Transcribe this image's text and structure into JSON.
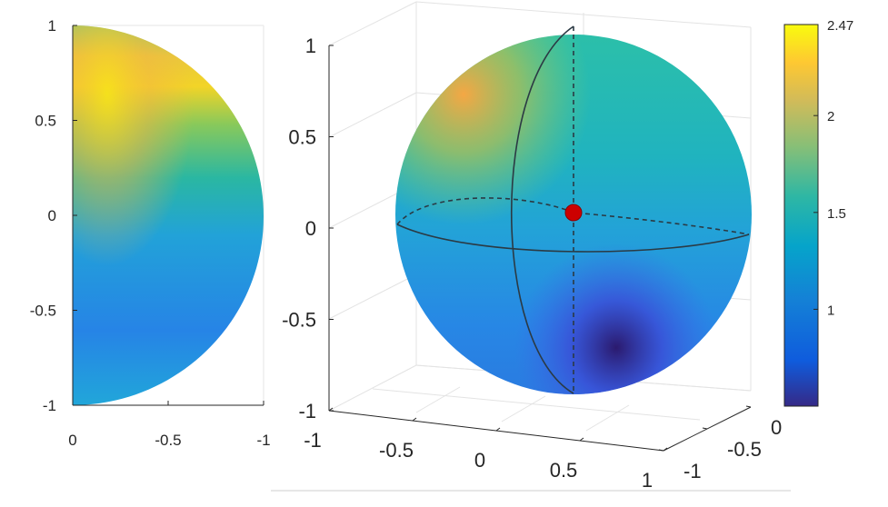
{
  "chart_data": [
    {
      "type": "heatmap",
      "view": "2D half-disk projection",
      "x_ticks": [
        "0",
        "-0.5",
        "-1"
      ],
      "y_ticks": [
        "1",
        "0.5",
        "0",
        "-0.5",
        "-1"
      ],
      "xlim": [
        0,
        -1
      ],
      "ylim": [
        -1,
        1
      ],
      "grid": true
    },
    {
      "type": "heatmap",
      "view": "3D sphere surface",
      "z_ticks": [
        "1",
        "0.5",
        "0",
        "-0.5",
        "-1"
      ],
      "x_ticks": [
        "-1",
        "-0.5",
        "0",
        "0.5",
        "1"
      ],
      "y_ticks": [
        "0",
        "-0.5",
        "-1"
      ],
      "xlim": [
        -1,
        1
      ],
      "ylim": [
        -1,
        0
      ],
      "zlim": [
        -1,
        1
      ],
      "marker": {
        "color": "#cc0000"
      },
      "colorbar": {
        "ticks": [
          "2.47",
          "2",
          "1.5",
          "1"
        ],
        "range": [
          0.5,
          2.47
        ],
        "colormap": "parula"
      }
    }
  ]
}
